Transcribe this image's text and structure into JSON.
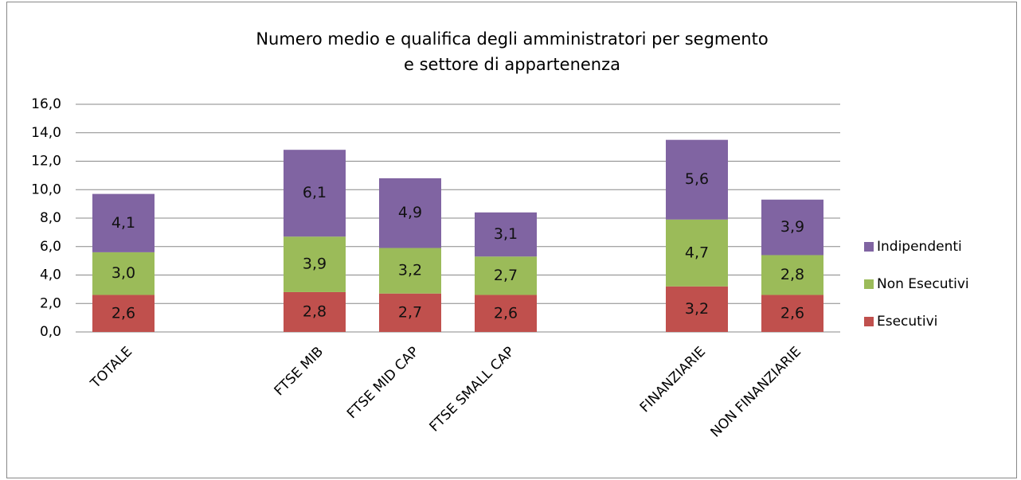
{
  "chart_data": {
    "type": "stacked_bar",
    "title": [
      "Numero medio e qualifica degli amministratori per segmento",
      "e settore di appartenenza"
    ],
    "categories": [
      "TOTALE",
      null,
      "FTSE MIB",
      "FTSE MID CAP",
      "FTSE SMALL CAP",
      null,
      "FINANZIARIE",
      "NON FINANZIARIE"
    ],
    "series": [
      {
        "name": "Esecutivi",
        "color": "#c0504d",
        "values": [
          2.6,
          null,
          2.8,
          2.7,
          2.6,
          null,
          3.2,
          2.6
        ],
        "value_labels": [
          "2,6",
          null,
          "2,8",
          "2,7",
          "2,6",
          null,
          "3,2",
          "2,6"
        ]
      },
      {
        "name": "Non Esecutivi",
        "color": "#9bbb59",
        "values": [
          3.0,
          null,
          3.9,
          3.2,
          2.7,
          null,
          4.7,
          2.8
        ],
        "value_labels": [
          "3,0",
          null,
          "3,9",
          "3,2",
          "2,7",
          null,
          "4,7",
          "2,8"
        ]
      },
      {
        "name": "Indipendenti",
        "color": "#8064a2",
        "values": [
          4.1,
          null,
          6.1,
          4.9,
          3.1,
          null,
          5.6,
          3.9
        ],
        "value_labels": [
          "4,1",
          null,
          "6,1",
          "4,9",
          "3,1",
          null,
          "5,6",
          "3,9"
        ]
      }
    ],
    "ylim": [
      0,
      16
    ],
    "yticks": [
      {
        "value": 0,
        "label": "0,0"
      },
      {
        "value": 2,
        "label": "2,0"
      },
      {
        "value": 4,
        "label": "4,0"
      },
      {
        "value": 6,
        "label": "6,0"
      },
      {
        "value": 8,
        "label": "8,0"
      },
      {
        "value": 10,
        "label": "10,0"
      },
      {
        "value": 12,
        "label": "12,0"
      },
      {
        "value": 14,
        "label": "14,0"
      },
      {
        "value": 16,
        "label": "16,0"
      }
    ],
    "grid": true,
    "legend": "right"
  }
}
